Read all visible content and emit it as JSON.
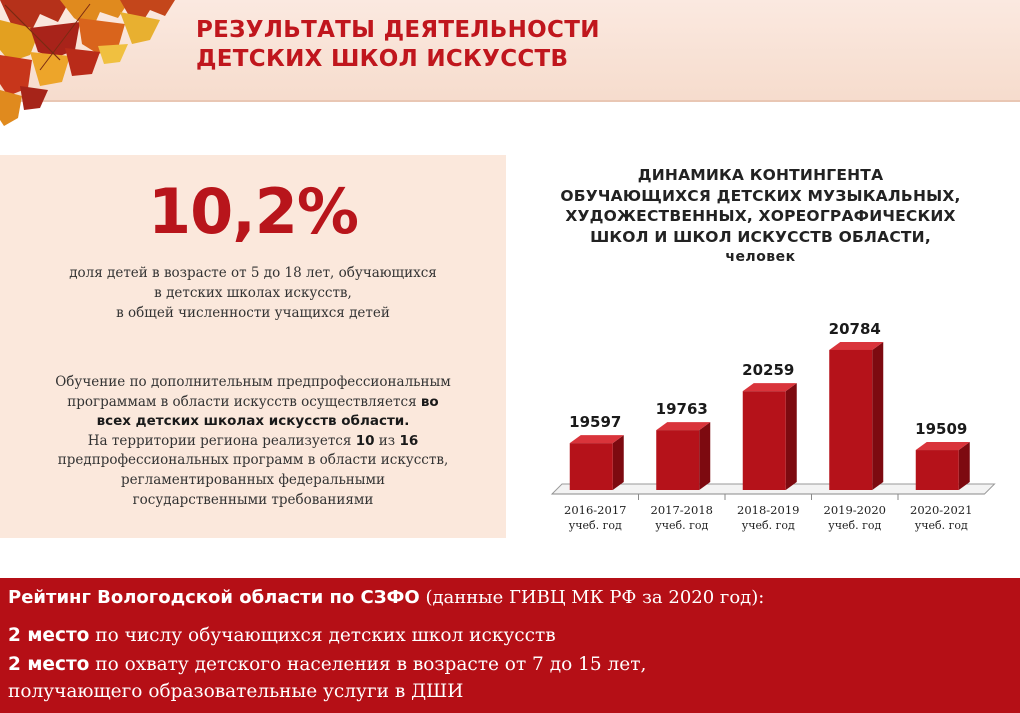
{
  "header": {
    "title_line1": "РЕЗУЛЬТАТЫ ДЕЯТЕЛЬНОСТИ",
    "title_line2": "ДЕТСКИХ ШКОЛ ИСКУССТВ"
  },
  "share": {
    "value": "10,2%",
    "desc_line1": "доля детей в возрасте от 5 до 18 лет, обучающихся",
    "desc_line2": "в детских школах искусств,",
    "desc_line3": "в общей численности учащихся детей"
  },
  "programs": {
    "line1": "Обучение по дополнительным предпрофессиональным",
    "line2_plain": "программам в области искусств осуществляется ",
    "line2_bold": "во",
    "line3_bold": "всех детских школах искусств области.",
    "line4_plain1": "На территории региона реализуется ",
    "line4_bold1": "10",
    "line4_plain2": " из ",
    "line4_bold2": "16",
    "line5": "предпрофессиональных программ в области искусств,",
    "line6": "регламентированных федеральными",
    "line7": "государственными требованиями"
  },
  "chart_data": {
    "type": "bar",
    "title_lines": [
      "ДИНАМИКА КОНТИНГЕНТА",
      "ОБУЧАЮЩИХСЯ ДЕТСКИХ МУЗЫКАЛЬНЫХ,",
      "ХУДОЖЕСТВЕННЫХ, ХОРЕОГРАФИЧЕСКИХ",
      "ШКОЛ И ШКОЛ ИСКУССТВ ОБЛАСТИ,"
    ],
    "unit": "человек",
    "categories": [
      [
        "2016-2017",
        "учеб. год"
      ],
      [
        "2017-2018",
        "учеб. год"
      ],
      [
        "2018-2019",
        "учеб. год"
      ],
      [
        "2019-2020",
        "учеб. год"
      ],
      [
        "2020-2021",
        "учеб. год"
      ]
    ],
    "values": [
      19597,
      19763,
      20259,
      20784,
      19509
    ],
    "value_labels": [
      "19597",
      "19763",
      "20259",
      "20784",
      "19509"
    ],
    "ylim": [
      19000,
      21000
    ],
    "grid": false,
    "legend": "none",
    "bar_color": "#b5121a"
  },
  "rating": {
    "title_bold": "Рейтинг Вологодской области по СЗФО",
    "title_plain": " (данные ГИВЦ МК РФ за 2020 год):",
    "item1_bold": "2 место",
    "item1_text": "  по числу обучающихся детских школ искусств",
    "item2_bold": "2 место",
    "item2_text": " по охвату детского населения в возрасте от 7 до 15 лет,",
    "item3_text": "получающего образовательные услуги в ДШИ"
  },
  "colors": {
    "accent_red": "#c0161d",
    "band_red": "#b50f16",
    "panel_peach": "#fbe8dc"
  }
}
